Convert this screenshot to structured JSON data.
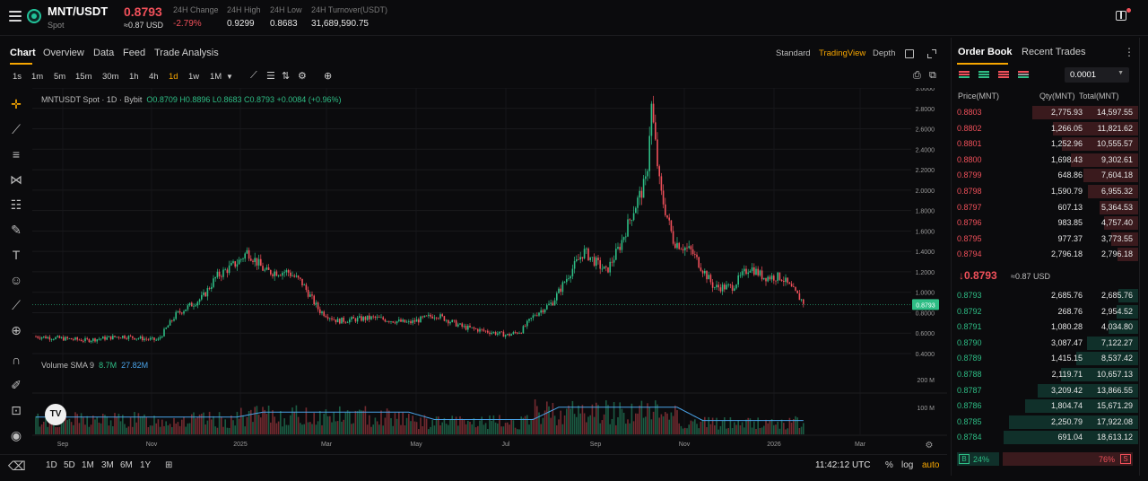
{
  "header": {
    "pair": "MNT/USDT",
    "market_type": "Spot",
    "last_price": "0.8793",
    "last_price_usd": "≈0.87 USD",
    "stats": [
      {
        "label": "24H Change",
        "value": "-2.79%",
        "negative": true
      },
      {
        "label": "24H High",
        "value": "0.9299"
      },
      {
        "label": "24H Low",
        "value": "0.8683"
      },
      {
        "label": "24H Turnover(USDT)",
        "value": "31,689,590.75"
      }
    ]
  },
  "chart_tabs": [
    "Chart",
    "Overview",
    "Data",
    "Feed",
    "Trade Analysis"
  ],
  "views": [
    "Standard",
    "TradingView",
    "Depth"
  ],
  "active_view": "TradingView",
  "intervals": [
    "1s",
    "1m",
    "5m",
    "15m",
    "30m",
    "1h",
    "4h",
    "1d",
    "1w",
    "1M"
  ],
  "active_interval": "1d",
  "legend": {
    "symbol": "MNTUSDT Spot · 1D · Bybit",
    "ohlc": "O0.8709  H0.8896  L0.8683  C0.8793  +0.0084 (+0.96%)"
  },
  "volume_legend": {
    "label": "Volume SMA 9",
    "v1": "8.7M",
    "v2": "27.82M"
  },
  "tv_logo": "TV",
  "price_axis_labels": [
    "3.0000",
    "2.8000",
    "2.6000",
    "2.4000",
    "2.2000",
    "2.0000",
    "1.8000",
    "1.6000",
    "1.4000",
    "1.2000",
    "1.0000",
    "0.8000",
    "0.6000",
    "0.4000"
  ],
  "last_price_tag": "0.8793",
  "volume_axis_labels": [
    "200 M",
    "100 M"
  ],
  "time_axis_labels": [
    "Sep",
    "Nov",
    "2025",
    "Mar",
    "May",
    "Jul",
    "Sep",
    "Nov",
    "2026",
    "Mar"
  ],
  "ranges": [
    "1D",
    "5D",
    "1M",
    "3M",
    "6M",
    "1Y"
  ],
  "clock": "11:42:12 UTC",
  "axis_options": [
    "%",
    "log",
    "auto"
  ],
  "active_axis_option": "auto",
  "colors": {
    "up": "#2ebd85",
    "down": "#f0505a",
    "accent": "#f7a600",
    "sma": "#4aa3e8"
  },
  "order_book": {
    "tabs": [
      "Order Book",
      "Recent Trades"
    ],
    "precision": "0.0001",
    "headers": {
      "price": "Price(MNT)",
      "qty": "Qty(MNT)",
      "total": "Total(MNT)"
    },
    "asks": [
      {
        "price": "0.8803",
        "qty": "2,775.93",
        "total": "14,597.55"
      },
      {
        "price": "0.8802",
        "qty": "1,266.05",
        "total": "11,821.62"
      },
      {
        "price": "0.8801",
        "qty": "1,252.96",
        "total": "10,555.57"
      },
      {
        "price": "0.8800",
        "qty": "1,698.43",
        "total": "9,302.61"
      },
      {
        "price": "0.8799",
        "qty": "648.86",
        "total": "7,604.18"
      },
      {
        "price": "0.8798",
        "qty": "1,590.79",
        "total": "6,955.32"
      },
      {
        "price": "0.8797",
        "qty": "607.13",
        "total": "5,364.53"
      },
      {
        "price": "0.8796",
        "qty": "983.85",
        "total": "4,757.40"
      },
      {
        "price": "0.8795",
        "qty": "977.37",
        "total": "3,773.55"
      },
      {
        "price": "0.8794",
        "qty": "2,796.18",
        "total": "2,796.18"
      }
    ],
    "mid_price": "↓0.8793",
    "mid_usd": "≈0.87 USD",
    "bids": [
      {
        "price": "0.8793",
        "qty": "2,685.76",
        "total": "2,685.76"
      },
      {
        "price": "0.8792",
        "qty": "268.76",
        "total": "2,954.52"
      },
      {
        "price": "0.8791",
        "qty": "1,080.28",
        "total": "4,034.80"
      },
      {
        "price": "0.8790",
        "qty": "3,087.47",
        "total": "7,122.27"
      },
      {
        "price": "0.8789",
        "qty": "1,415.15",
        "total": "8,537.42"
      },
      {
        "price": "0.8788",
        "qty": "2,119.71",
        "total": "10,657.13"
      },
      {
        "price": "0.8787",
        "qty": "3,209.42",
        "total": "13,866.55"
      },
      {
        "price": "0.8786",
        "qty": "1,804.74",
        "total": "15,671.29"
      },
      {
        "price": "0.8785",
        "qty": "2,250.79",
        "total": "17,922.08"
      },
      {
        "price": "0.8784",
        "qty": "691.04",
        "total": "18,613.12"
      }
    ],
    "buy_label": "B",
    "buy_pct": "24%",
    "sell_pct": "76%",
    "sell_label": "S",
    "buy_ratio": 0.24
  },
  "chart_data": {
    "type": "line",
    "x": [
      "Sep",
      "Nov",
      "2025",
      "Mar",
      "May",
      "Jul",
      "Sep",
      "Nov",
      "2026"
    ],
    "ylim": [
      0.4,
      3.0
    ],
    "series": [
      {
        "values": [
          0.57,
          0.53,
          1.15,
          0.82,
          0.72,
          0.58,
          1.2,
          1.1,
          0.88
        ]
      }
    ]
  }
}
